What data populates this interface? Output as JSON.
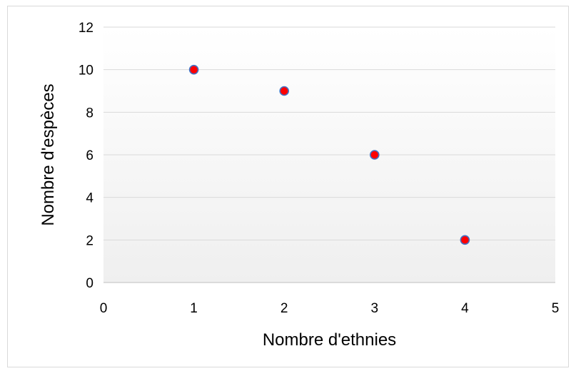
{
  "chart_data": {
    "type": "scatter",
    "title": "",
    "xlabel": "Nombre d'ethnies",
    "ylabel": "Nombre d'espèces",
    "xlim": [
      0,
      5
    ],
    "ylim": [
      0,
      12
    ],
    "x_ticks": [
      "0",
      "1",
      "2",
      "3",
      "4",
      "5"
    ],
    "y_ticks": [
      "0",
      "2",
      "4",
      "6",
      "8",
      "10",
      "12"
    ],
    "grid": "horizontal",
    "legend": "none",
    "marker_fill": "#ff0000",
    "marker_edge": "#4472c4",
    "series": [
      {
        "x": [
          1,
          2,
          3,
          4
        ],
        "y": [
          10,
          9,
          6,
          2
        ]
      }
    ]
  }
}
